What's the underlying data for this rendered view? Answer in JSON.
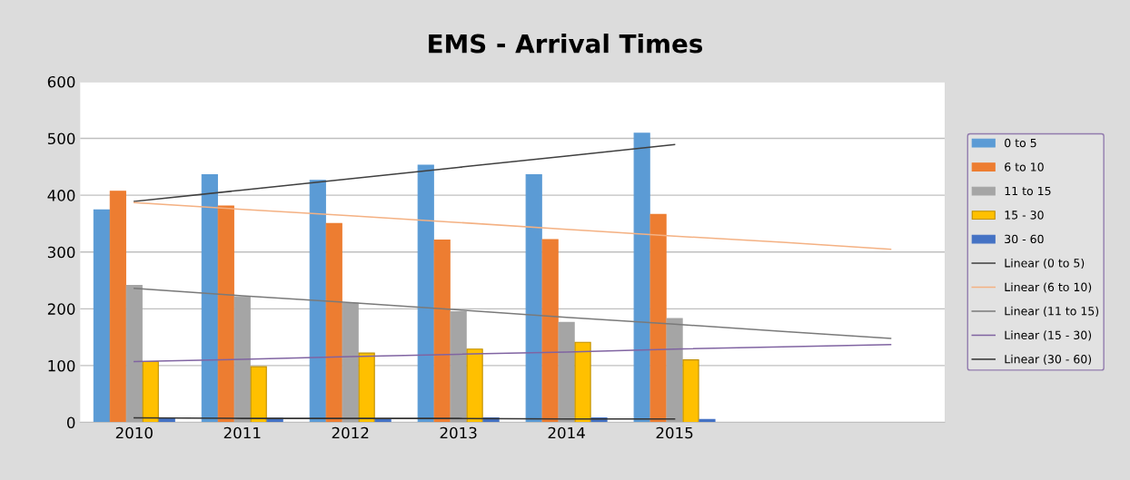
{
  "chart_data": {
    "type": "bar",
    "title": "EMS - Arrival Times",
    "categories": [
      "2010",
      "2011",
      "2012",
      "2013",
      "2014",
      "2015",
      null,
      null
    ],
    "ylim": [
      0,
      600
    ],
    "yticks": [
      0,
      100,
      200,
      300,
      400,
      500,
      600
    ],
    "grid": "y",
    "legend": "right",
    "series": [
      {
        "name": "0 to 5",
        "color": "#5b9bd5",
        "values": [
          374,
          436,
          426,
          453,
          436,
          509,
          null,
          null
        ]
      },
      {
        "name": "6 to 10",
        "color": "#ed7d31",
        "values": [
          407,
          381,
          350,
          321,
          322,
          366,
          null,
          null
        ]
      },
      {
        "name": "11 to 15",
        "color": "#a5a5a5",
        "values": [
          241,
          221,
          210,
          195,
          176,
          183,
          null,
          null
        ]
      },
      {
        "name": "15 - 30",
        "color": "#ffc000",
        "values": [
          107,
          98,
          122,
          129,
          141,
          110,
          null,
          null
        ]
      },
      {
        "name": "30 - 60",
        "color": "#4472c4",
        "values": [
          8,
          7,
          5,
          8,
          8,
          5,
          null,
          null
        ]
      },
      {
        "name": "Linear (0 to 5)",
        "type": "line",
        "color": "#404040",
        "values": [
          389,
          409,
          429,
          449,
          469,
          489,
          null,
          null
        ]
      },
      {
        "name": "Linear (6 to 10)",
        "type": "line",
        "color": "#f4b183",
        "values": [
          387,
          375,
          364,
          352,
          340,
          328,
          317,
          305
        ]
      },
      {
        "name": "Linear (11 to 15)",
        "type": "line",
        "color": "#7a7a7a",
        "values": [
          236,
          223,
          211,
          198,
          185,
          173,
          160,
          148
        ]
      },
      {
        "name": "Linear (15 - 30)",
        "type": "line",
        "color": "#8064a2",
        "values": [
          107,
          111,
          116,
          120,
          124,
          129,
          133,
          137
        ]
      },
      {
        "name": "Linear (30 - 60)",
        "type": "line",
        "color": "#333333",
        "values": [
          8,
          7,
          7,
          7,
          6,
          6,
          null,
          null
        ]
      }
    ]
  }
}
